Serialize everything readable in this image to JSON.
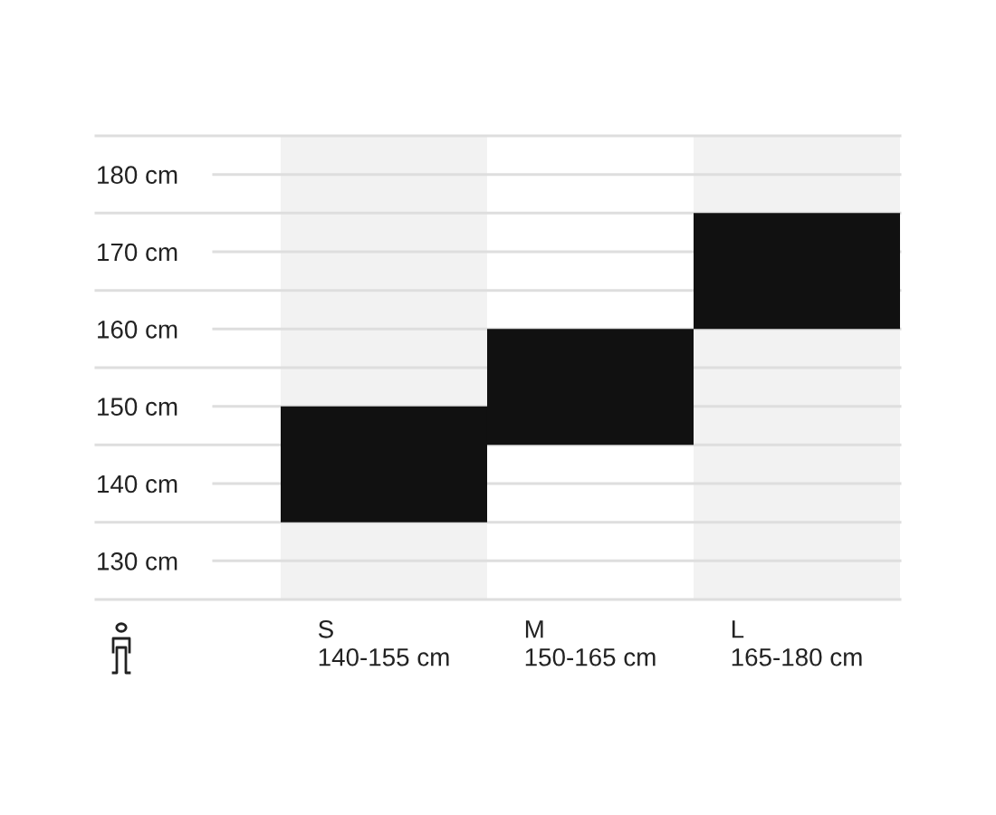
{
  "chart_data": {
    "type": "bar",
    "categories": [
      "S\n140-155 cm",
      "M\n150-165 cm",
      "L\n165-180 cm"
    ],
    "base": [
      135,
      145,
      160
    ],
    "values": [
      15,
      15,
      15
    ],
    "color": "#111111",
    "ylim": [
      125,
      185
    ],
    "yticks": [
      {
        "value": 125,
        "label": null
      },
      {
        "value": 130,
        "label": "130 cm"
      },
      {
        "value": 135,
        "label": null
      },
      {
        "value": 140,
        "label": "140 cm"
      },
      {
        "value": 145,
        "label": null
      },
      {
        "value": 150,
        "label": "150 cm"
      },
      {
        "value": 155,
        "label": null
      },
      {
        "value": 160,
        "label": "160 cm"
      },
      {
        "value": 165,
        "label": null
      },
      {
        "value": 170,
        "label": "170 cm"
      },
      {
        "value": 175,
        "label": null
      },
      {
        "value": 180,
        "label": "180 cm"
      },
      {
        "value": 185,
        "label": null
      }
    ],
    "grid": "y",
    "bands": [
      {
        "axis": "x",
        "from": "S\n140-155 cm",
        "to": "S\n140-155 cm",
        "color": "#f2f2f2"
      },
      {
        "axis": "x",
        "from": "L\n165-180 cm",
        "to": "L\n165-180 cm",
        "color": "#f2f2f2"
      }
    ]
  }
}
